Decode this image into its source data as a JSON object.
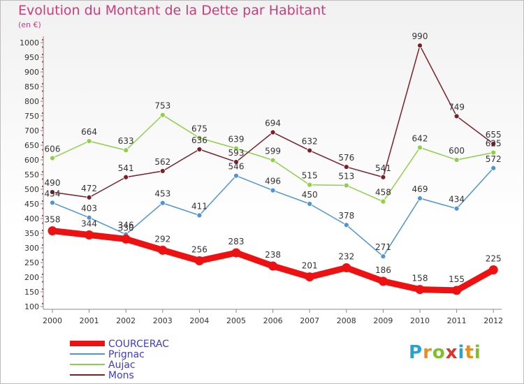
{
  "title": "Evolution du Montant de la Dette par Habitant",
  "subtitle": "(en €)",
  "logo": {
    "text": "Proxiti",
    "colors": [
      "#2aa1d3",
      "#e98e1c",
      "#7fbf2a",
      "#e0312d",
      "#2aa1d3",
      "#e98e1c",
      "#7fbf2a"
    ]
  },
  "chart_data": {
    "type": "line",
    "x": [
      "2000",
      "2001",
      "2002",
      "2003",
      "2004",
      "2005",
      "2006",
      "2007",
      "2008",
      "2009",
      "2010",
      "2011",
      "2012"
    ],
    "ylim": [
      100,
      1000
    ],
    "yticks": [
      100,
      150,
      200,
      250,
      300,
      350,
      400,
      450,
      500,
      550,
      600,
      650,
      700,
      750,
      800,
      850,
      900,
      950,
      1000
    ],
    "grid": false,
    "legend_position": "bottom-left",
    "series": [
      {
        "name": "COURCERAC",
        "color": "#ee1111",
        "bold": true,
        "values": [
          358,
          344,
          330,
          292,
          256,
          283,
          238,
          201,
          232,
          186,
          158,
          155,
          225
        ]
      },
      {
        "name": "Prignac",
        "color": "#4f94d4",
        "values": [
          454,
          403,
          346,
          453,
          411,
          546,
          496,
          450,
          378,
          271,
          469,
          434,
          572
        ]
      },
      {
        "name": "Aujac",
        "color": "#8fd04a",
        "values": [
          606,
          664,
          633,
          753,
          675,
          639,
          599,
          515,
          513,
          458,
          642,
          600,
          625
        ]
      },
      {
        "name": "Mons",
        "color": "#7b1f28",
        "values": [
          490,
          472,
          541,
          562,
          636,
          593,
          694,
          632,
          576,
          541,
          990,
          749,
          655
        ]
      }
    ]
  }
}
